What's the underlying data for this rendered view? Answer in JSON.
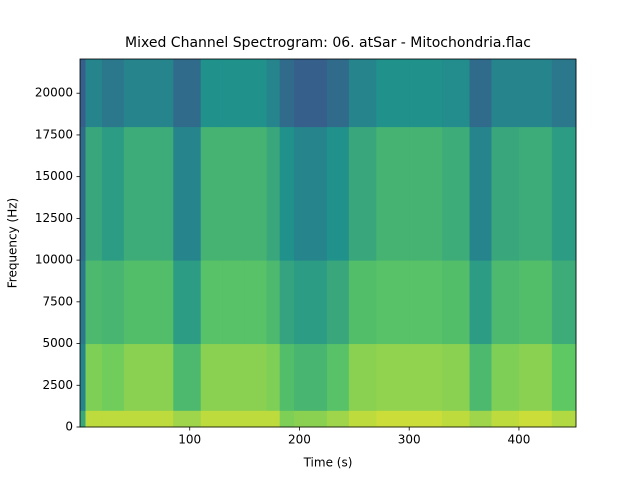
{
  "chart_data": {
    "type": "spectrogram",
    "title": "Mixed Channel Spectrogram: 06. atSar - Mitochondria.flac",
    "x_label": "Time (s)",
    "y_label": "Frequency (Hz)",
    "colormap": "viridis",
    "x_edges": [
      0,
      5,
      20,
      40,
      60,
      85,
      110,
      130,
      150,
      170,
      182,
      195,
      225,
      245,
      270,
      300,
      330,
      355,
      375,
      400,
      430,
      452
    ],
    "y_edges": [
      0,
      1000,
      5000,
      10000,
      18000,
      22050
    ],
    "values": [
      [
        0.6,
        0.9,
        0.9,
        0.9,
        0.9,
        0.85,
        0.9,
        0.9,
        0.9,
        0.9,
        0.8,
        0.82,
        0.85,
        0.9,
        0.92,
        0.92,
        0.9,
        0.85,
        0.9,
        0.92,
        0.88
      ],
      [
        0.45,
        0.8,
        0.78,
        0.82,
        0.82,
        0.68,
        0.82,
        0.82,
        0.82,
        0.8,
        0.7,
        0.66,
        0.72,
        0.82,
        0.83,
        0.83,
        0.82,
        0.68,
        0.8,
        0.82,
        0.75
      ],
      [
        0.4,
        0.68,
        0.66,
        0.7,
        0.7,
        0.55,
        0.72,
        0.72,
        0.72,
        0.68,
        0.58,
        0.55,
        0.6,
        0.7,
        0.72,
        0.72,
        0.7,
        0.55,
        0.68,
        0.7,
        0.62
      ],
      [
        0.35,
        0.6,
        0.55,
        0.62,
        0.62,
        0.45,
        0.65,
        0.65,
        0.65,
        0.6,
        0.5,
        0.45,
        0.5,
        0.6,
        0.65,
        0.65,
        0.62,
        0.45,
        0.6,
        0.62,
        0.55
      ],
      [
        0.3,
        0.45,
        0.4,
        0.45,
        0.45,
        0.35,
        0.5,
        0.5,
        0.5,
        0.45,
        0.35,
        0.3,
        0.35,
        0.45,
        0.5,
        0.5,
        0.48,
        0.35,
        0.45,
        0.45,
        0.4
      ]
    ],
    "xlim": [
      0,
      452
    ],
    "ylim": [
      0,
      22050
    ],
    "xticks": [
      100,
      200,
      300,
      400
    ],
    "yticks": [
      0,
      2500,
      5000,
      7500,
      10000,
      12500,
      15000,
      17500,
      20000
    ]
  }
}
